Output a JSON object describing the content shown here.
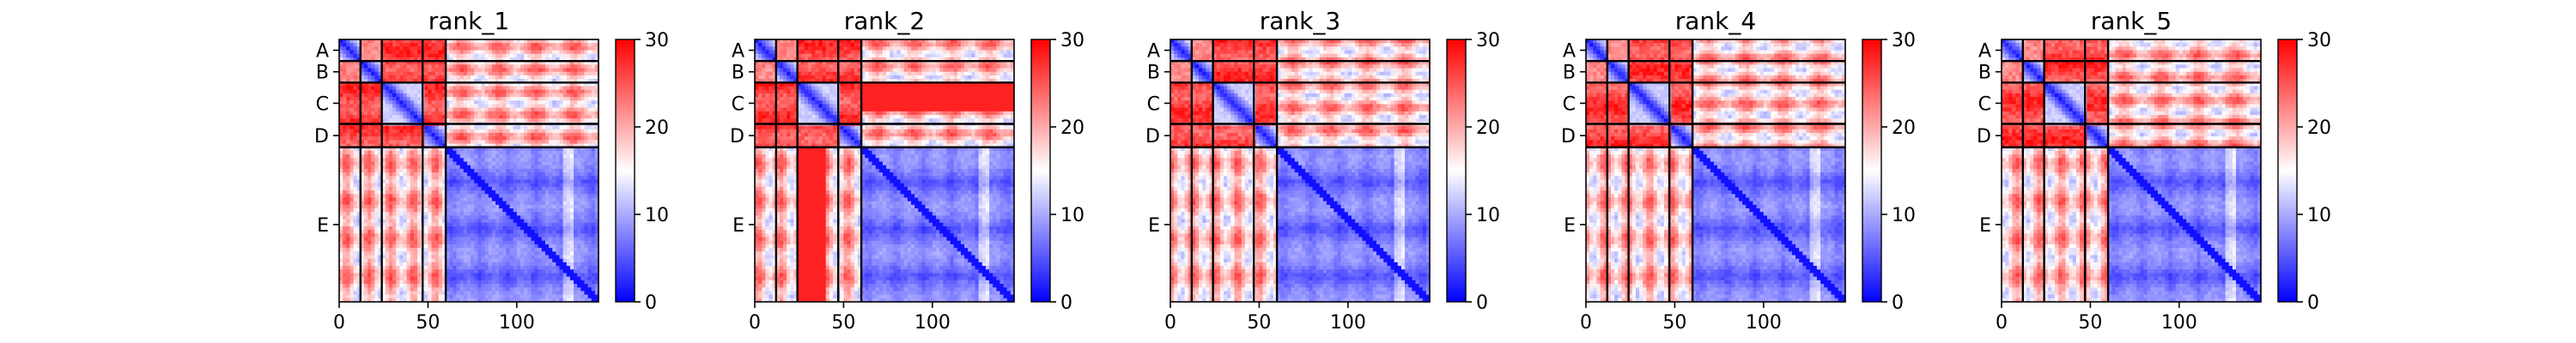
{
  "chart_data": {
    "type": "heatmap",
    "description": "Predicted aligned error (PAE) matrices for five model ranks, chains A-E",
    "chains": [
      {
        "label": "A",
        "start": 0,
        "end": 12
      },
      {
        "label": "B",
        "start": 12,
        "end": 24
      },
      {
        "label": "C",
        "start": 24,
        "end": 47
      },
      {
        "label": "D",
        "start": 47,
        "end": 60
      },
      {
        "label": "E",
        "start": 60,
        "end": 146
      }
    ],
    "total_residues": 146,
    "x_ticks": [
      0,
      50,
      100
    ],
    "colorbar": {
      "min": 0,
      "max": 30,
      "ticks": [
        0,
        10,
        20,
        30
      ],
      "colors": [
        "#0000ff",
        "#ffffff",
        "#ff0000"
      ]
    },
    "panels": [
      {
        "title": "rank_1"
      },
      {
        "title": "rank_2"
      },
      {
        "title": "rank_3"
      },
      {
        "title": "rank_4"
      },
      {
        "title": "rank_5"
      }
    ]
  }
}
